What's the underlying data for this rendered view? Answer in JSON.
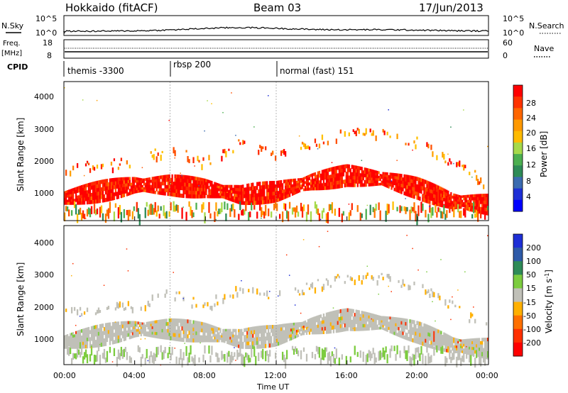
{
  "header": {
    "site": "Hokkaido (fitACF)",
    "beam": "Beam 03",
    "date": "17/Jun/2013"
  },
  "noise_panel": {
    "left_label": "N.Sky",
    "right_label": "N.Search",
    "left_ticks": [
      "10^5",
      "10^0"
    ],
    "right_ticks": [
      "10^5",
      "10^0"
    ]
  },
  "freq_panel": {
    "left_label_1": "Freq.",
    "left_label_2": "[MHz]",
    "right_label": "Nave",
    "left_ticks": [
      "18",
      "8"
    ],
    "right_ticks": [
      "60",
      "0"
    ]
  },
  "cpid_panel": {
    "label": "CPID",
    "modes": [
      {
        "name": "themis -3300",
        "start_hour": 0
      },
      {
        "name": "rbsp 200",
        "start_hour": 6
      },
      {
        "name": "normal (fast) 151",
        "start_hour": 12
      }
    ]
  },
  "power_panel": {
    "ylabel": "Slant Range [km]",
    "yticks": [
      "4000",
      "3000",
      "2000",
      "1000"
    ],
    "colorbar_label": "Power [dB]",
    "colorbar_ticks": [
      "28",
      "24",
      "20",
      "16",
      "12",
      "8",
      "4"
    ],
    "colorbar_colors": [
      "#ff0000",
      "#ff3300",
      "#ff6600",
      "#ff9900",
      "#ffbb00",
      "#a6d94a",
      "#4caf50",
      "#2e8b57",
      "#3b6bb0",
      "#1e2fd6",
      "#0000ff"
    ]
  },
  "velocity_panel": {
    "ylabel": "Slant Range [km]",
    "yticks": [
      "4000",
      "3000",
      "2000",
      "1000"
    ],
    "colorbar_label": "Velocity [m s",
    "colorbar_label_sup": "-1",
    "colorbar_label_end": "]",
    "colorbar_ticks": [
      "200",
      "100",
      "50",
      "15",
      "-15",
      "-50",
      "-100",
      "-200"
    ],
    "colorbar_colors": [
      "#1e2fd6",
      "#2e5aa8",
      "#2e8b57",
      "#7ccc3f",
      "#c0c0b8",
      "#ffb000",
      "#ff7000",
      "#ff3000",
      "#ff0000"
    ]
  },
  "xaxis": {
    "label": "Time UT",
    "ticks": [
      "00:00",
      "04:00",
      "08:00",
      "12:00",
      "16:00",
      "20:00",
      "00:00"
    ]
  },
  "chart_data": {
    "type": "heatmap",
    "title": "Hokkaido (fitACF)",
    "subtitle": "Beam 03 17/Jun/2013",
    "x_unit": "hours UT",
    "xlim": [
      0,
      24
    ],
    "ylim_km": [
      200,
      4500
    ],
    "xlabel": "Time UT",
    "ylabel": "Slant Range [km]",
    "scatter_bands": [
      {
        "hour": 0,
        "center_km": 900,
        "top_km": 2000
      },
      {
        "hour": 2,
        "center_km": 1100,
        "top_km": 2100
      },
      {
        "hour": 4,
        "center_km": 1300,
        "top_km": 2200
      },
      {
        "hour": 6,
        "center_km": 1300,
        "top_km": 2600
      },
      {
        "hour": 8,
        "center_km": 1200,
        "top_km": 2200
      },
      {
        "hour": 10,
        "center_km": 1000,
        "top_km": 2800
      },
      {
        "hour": 12,
        "center_km": 1100,
        "top_km": 2500
      },
      {
        "hour": 14,
        "center_km": 1400,
        "top_km": 2800
      },
      {
        "hour": 16,
        "center_km": 1600,
        "top_km": 3100
      },
      {
        "hour": 18,
        "center_km": 1500,
        "top_km": 3100
      },
      {
        "hour": 20,
        "center_km": 1200,
        "top_km": 2800
      },
      {
        "hour": 22,
        "center_km": 800,
        "top_km": 2200
      },
      {
        "hour": 24,
        "center_km": 700,
        "top_km": 1500
      }
    ],
    "power_range_db": [
      0,
      30
    ],
    "velocity_range_ms": [
      -250,
      250
    ],
    "grid": false
  }
}
